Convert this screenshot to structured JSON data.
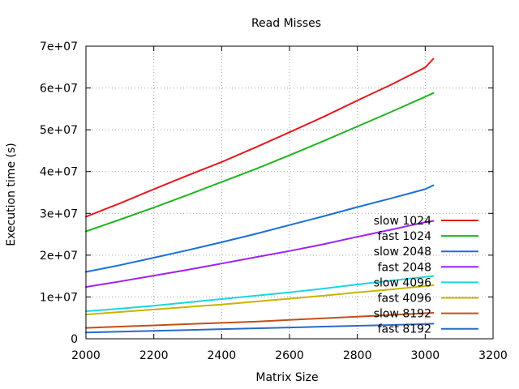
{
  "chart_data": {
    "type": "line",
    "title": "Read Misses",
    "xlabel": "Matrix Size",
    "ylabel": "Execution time (s)",
    "xlim": [
      2000,
      3200
    ],
    "ylim": [
      0,
      70000000
    ],
    "xticks": [
      2000,
      2200,
      2400,
      2600,
      2800,
      3000,
      3200
    ],
    "xtick_labels": [
      "2000",
      "2200",
      "2400",
      "2600",
      "2800",
      "3000",
      "3200"
    ],
    "yticks": [
      0,
      10000000,
      20000000,
      30000000,
      40000000,
      50000000,
      60000000,
      70000000
    ],
    "ytick_labels": [
      "0",
      "1e+07",
      "2e+07",
      "3e+07",
      "4e+07",
      "5e+07",
      "6e+07",
      "7e+07"
    ],
    "grid": true,
    "legend_position": "bottom-right",
    "x": [
      2000,
      2100,
      2200,
      2300,
      2400,
      2500,
      2600,
      2700,
      2800,
      2900,
      3000,
      3024
    ],
    "series": [
      {
        "name": "slow 1024",
        "color": "#e31a1c",
        "values": [
          29200000,
          32400000,
          35800000,
          39100000,
          42300000,
          45800000,
          49400000,
          53100000,
          57000000,
          60800000,
          64900000,
          67000000
        ]
      },
      {
        "name": "fast 1024",
        "color": "#1fb51f",
        "values": [
          25700000,
          28500000,
          31400000,
          34400000,
          37500000,
          40600000,
          43900000,
          47300000,
          50800000,
          54300000,
          57900000,
          58800000
        ]
      },
      {
        "name": "slow 2048",
        "color": "#1a6fd6",
        "values": [
          16000000,
          17600000,
          19400000,
          21200000,
          23100000,
          25100000,
          27200000,
          29300000,
          31500000,
          33600000,
          35800000,
          36700000
        ]
      },
      {
        "name": "fast 2048",
        "color": "#a020f0",
        "values": [
          12400000,
          13700000,
          15100000,
          16500000,
          18000000,
          19500000,
          21000000,
          22600000,
          24400000,
          26100000,
          27900000,
          28200000
        ]
      },
      {
        "name": "slow 4096",
        "color": "#1ad6e0",
        "values": [
          6600000,
          7200000,
          7900000,
          8700000,
          9500000,
          10300000,
          11100000,
          12000000,
          13000000,
          13900000,
          14800000,
          15000000
        ]
      },
      {
        "name": "fast 4096",
        "color": "#c8b400",
        "values": [
          5800000,
          6400000,
          7000000,
          7600000,
          8200000,
          8900000,
          9600000,
          10300000,
          11100000,
          11800000,
          12600000,
          12800000
        ]
      },
      {
        "name": "slow 8192",
        "color": "#c0501a",
        "values": [
          2600000,
          2900000,
          3200000,
          3500000,
          3800000,
          4100000,
          4500000,
          4900000,
          5300000,
          5700000,
          6100000,
          6200000
        ]
      },
      {
        "name": "fast 8192",
        "color": "#2a6ac8",
        "values": [
          1500000,
          1700000,
          1900000,
          2100000,
          2300000,
          2500000,
          2700000,
          2900000,
          3100000,
          3300000,
          3500000,
          3600000
        ]
      }
    ]
  }
}
